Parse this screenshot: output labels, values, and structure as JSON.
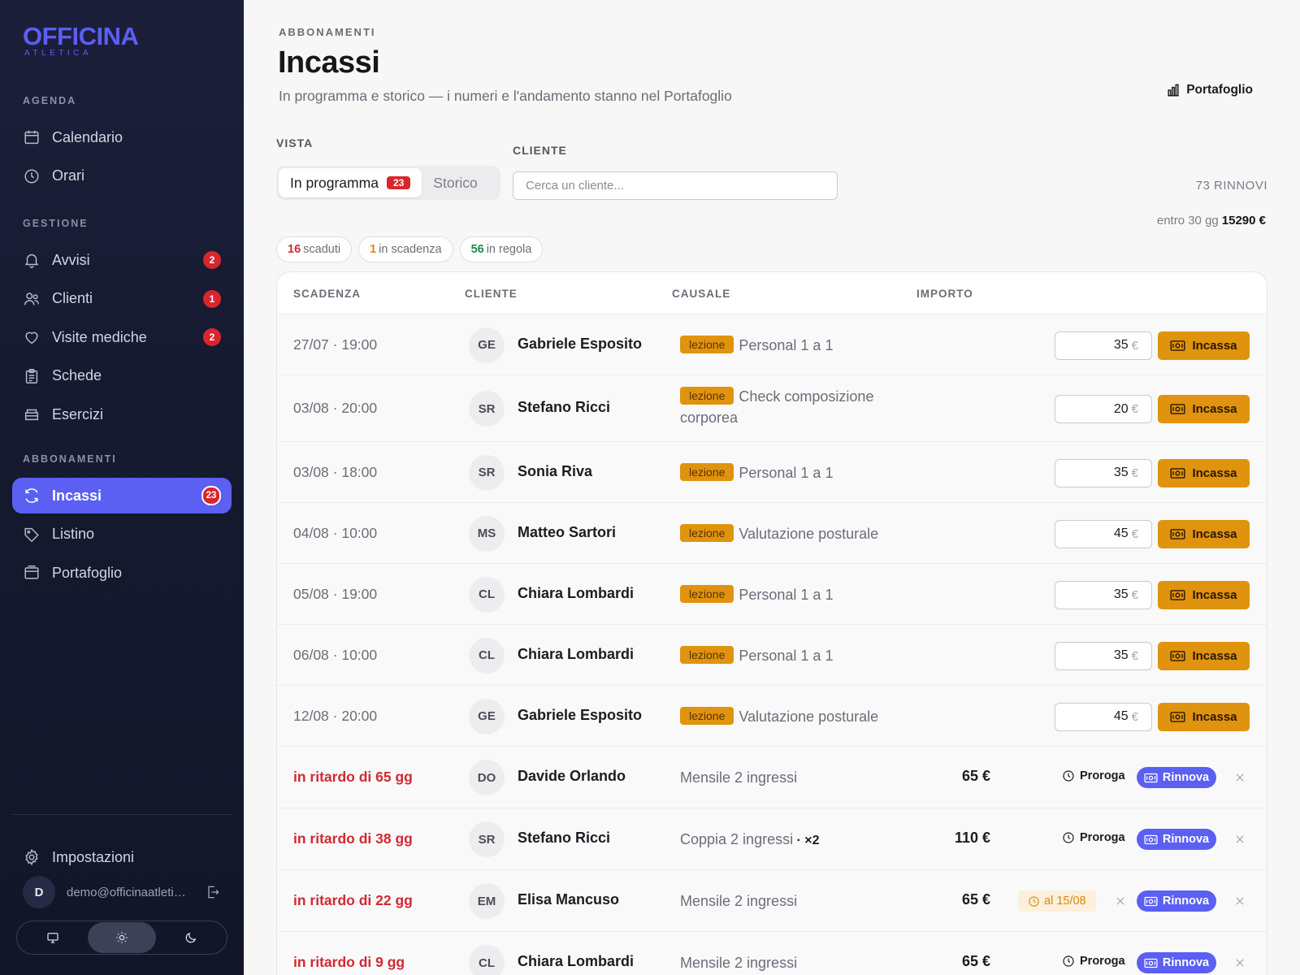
{
  "brand": {
    "name": "OFFICINA",
    "tagline": "ATLETICA"
  },
  "sidebar": {
    "sections": [
      {
        "heading": "AGENDA",
        "items": [
          {
            "label": "Calendario",
            "icon": "calendar-icon"
          },
          {
            "label": "Orari",
            "icon": "clock-icon"
          }
        ]
      },
      {
        "heading": "GESTIONE",
        "items": [
          {
            "label": "Avvisi",
            "icon": "bell-icon",
            "badge": "2"
          },
          {
            "label": "Clienti",
            "icon": "users-icon",
            "badge": "1"
          },
          {
            "label": "Visite mediche",
            "icon": "heart-icon",
            "badge": "2"
          },
          {
            "label": "Schede",
            "icon": "clipboard-icon"
          },
          {
            "label": "Esercizi",
            "icon": "box-icon"
          }
        ]
      },
      {
        "heading": "ABBONAMENTI",
        "items": [
          {
            "label": "Incassi",
            "icon": "refresh-icon",
            "badge": "23",
            "active": true
          },
          {
            "label": "Listino",
            "icon": "tag-icon"
          },
          {
            "label": "Portafoglio",
            "icon": "wallet-icon"
          }
        ]
      }
    ],
    "settings_label": "Impostazioni",
    "user": {
      "initial": "D",
      "email": "demo@officinaatletica.it"
    },
    "theme_options": [
      "monitor-icon",
      "sun-icon",
      "moon-icon"
    ],
    "theme_active": "sun-icon"
  },
  "header": {
    "eyebrow": "ABBONAMENTI",
    "title": "Incassi",
    "subtitle": "In programma e storico — i numeri e l'andamento stanno nel Portafoglio",
    "portfolio_link": "Portafoglio"
  },
  "filters": {
    "vista_label": "VISTA",
    "tabs": [
      {
        "label": "In programma",
        "badge": "23",
        "active": true
      },
      {
        "label": "Storico",
        "active": false
      }
    ],
    "cliente_label": "CLIENTE",
    "search_placeholder": "Cerca un cliente...",
    "search_value": ""
  },
  "summary": {
    "rinnovi": "73 RINNOVI",
    "entro_label": "entro 30 gg",
    "entro_amount": "15290 €"
  },
  "chips": [
    {
      "count": "16",
      "label": "scaduti",
      "color": "#d02a31"
    },
    {
      "count": "1",
      "label": "in scadenza",
      "color": "#d98a0c"
    },
    {
      "count": "56",
      "label": "in regola",
      "color": "#1f8a4c"
    }
  ],
  "table": {
    "columns": [
      "SCADENZA",
      "CLIENTE",
      "CAUSALE",
      "IMPORTO"
    ],
    "incassa_label": "Incassa",
    "proroga_label": "Proroga",
    "rinnova_label": "Rinnova",
    "currency": "€",
    "lessons": [
      {
        "date": "27/07 · 19:00",
        "initials": "GE",
        "name": "Gabriele Esposito",
        "tag": "lezione",
        "causale": "Personal 1 a 1",
        "amount": "35"
      },
      {
        "date": "03/08 · 20:00",
        "initials": "SR",
        "name": "Stefano Ricci",
        "tag": "lezione",
        "causale": "Check composizione corporea",
        "amount": "20"
      },
      {
        "date": "03/08 · 18:00",
        "initials": "SR",
        "name": "Sonia Riva",
        "tag": "lezione",
        "causale": "Personal 1 a 1",
        "amount": "35"
      },
      {
        "date": "04/08 · 10:00",
        "initials": "MS",
        "name": "Matteo Sartori",
        "tag": "lezione",
        "causale": "Valutazione posturale",
        "amount": "45"
      },
      {
        "date": "05/08 · 19:00",
        "initials": "CL",
        "name": "Chiara Lombardi",
        "tag": "lezione",
        "causale": "Personal 1 a 1",
        "amount": "35"
      },
      {
        "date": "06/08 · 10:00",
        "initials": "CL",
        "name": "Chiara Lombardi",
        "tag": "lezione",
        "causale": "Personal 1 a 1",
        "amount": "35"
      },
      {
        "date": "12/08 · 20:00",
        "initials": "GE",
        "name": "Gabriele Esposito",
        "tag": "lezione",
        "causale": "Valutazione posturale",
        "amount": "45"
      }
    ],
    "renewals": [
      {
        "date": "in ritardo di 65 gg",
        "initials": "DO",
        "name": "Davide Orlando",
        "causale": "Mensile 2 ingressi",
        "price": "65 €"
      },
      {
        "date": "in ritardo di 38 gg",
        "initials": "SR",
        "name": "Stefano Ricci",
        "causale": "Coppia 2 ingressi",
        "causale_extra": " · ×2",
        "price": "110 €"
      },
      {
        "date": "in ritardo di 22 gg",
        "initials": "EM",
        "name": "Elisa Mancuso",
        "causale": "Mensile 2 ingressi",
        "price": "65 €",
        "proroga_until": "al 15/08"
      },
      {
        "date": "in ritardo di 9 gg",
        "initials": "CL",
        "name": "Chiara Lombardi",
        "causale": "Mensile 2 ingressi",
        "price": "65 €"
      }
    ]
  }
}
